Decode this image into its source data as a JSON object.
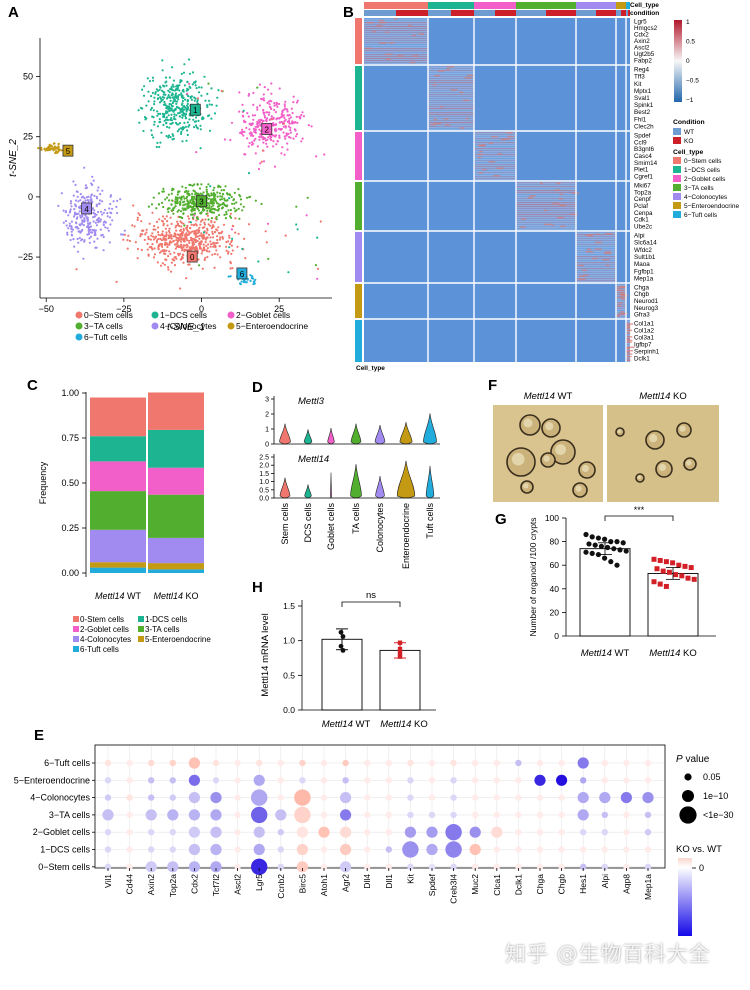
{
  "panels": {
    "A": "A",
    "B": "B",
    "C": "C",
    "D": "D",
    "E": "E",
    "F": "F",
    "G": "G",
    "H": "H"
  },
  "clusters": [
    {
      "label": "0−Stem cells",
      "tag": "0",
      "color": "#F0776D"
    },
    {
      "label": "1−DCS cells",
      "tag": "1",
      "color": "#1DB591"
    },
    {
      "label": "2−Goblet cells",
      "tag": "2",
      "color": "#F25FC8"
    },
    {
      "label": "3−TA cells",
      "tag": "3",
      "color": "#52AE2E"
    },
    {
      "label": "4−Colonocytes",
      "tag": "4",
      "color": "#A28BF0"
    },
    {
      "label": "5−Enteroendocrine",
      "tag": "5",
      "color": "#C49A14"
    },
    {
      "label": "6−Tuft cells",
      "tag": "6",
      "color": "#22ACDB"
    }
  ],
  "tsne": {
    "xlabel": "t-SNE_1",
    "ylabel": "t-SNE_2",
    "xticks": [
      -50,
      -25,
      0,
      25
    ],
    "yticks": [
      50,
      25,
      0,
      -25
    ],
    "xlim": [
      -52,
      42
    ],
    "ylim": [
      -42,
      66
    ]
  },
  "heatmap": {
    "annot_celltype": "Cell_type",
    "annot_condition": "condition",
    "row_annot_label": "Cell_type",
    "color_ticks": [
      "1",
      "0.5",
      "0",
      "−0.5",
      "−1"
    ],
    "legend_condition_title": "Condition",
    "conditions": [
      {
        "label": "WT",
        "color": "#6E9BD0"
      },
      {
        "label": "KO",
        "color": "#CC1F2A"
      }
    ],
    "legend_celltype_title": "Cell_type",
    "gene_groups": [
      [
        "Lgr5",
        "Hmgcs2",
        "Cdx2",
        "Axin2",
        "Ascl2",
        "Ugt2b5",
        "Fabp2"
      ],
      [
        "Reg4",
        "Tff3",
        "Kit",
        "Mptx1",
        "Sval1",
        "Spink1",
        "Best2",
        "Fhl1",
        "Clec2h"
      ],
      [
        "Spdef",
        "Ccl9",
        "B3gnt6",
        "Casc4",
        "Smim14",
        "Plet1",
        "Cgref1"
      ],
      [
        "Mki67",
        "Top2a",
        "Cenpf",
        "Pclaf",
        "Cenpa",
        "Cdk1",
        "Ube2c"
      ],
      [
        "Alpi",
        "Slc6a14",
        "Wfdc2",
        "Sult1b1",
        "Maoa",
        "Fgfbp1",
        "Mep1a"
      ],
      [
        "Chga",
        "Chgb",
        "Neurod1",
        "Neurog3",
        "Gfra3"
      ],
      [
        "Col1a1",
        "Col1a2",
        "Col3a1",
        "Igfbp7",
        "Serpinh1",
        "Dclk1"
      ]
    ]
  },
  "chart_data": [
    {
      "type": "bar",
      "panel": "C",
      "stacked": true,
      "categories": [
        "Mettl14 WT",
        "Mettl14 KO"
      ],
      "ylabel": "Frequency",
      "yticks": [
        "1.00",
        "0.75",
        "0.50",
        "0.25",
        "0.00"
      ],
      "ylim": [
        0,
        1
      ],
      "series": [
        {
          "name": "0-Stem cells",
          "values": [
            0.215,
            0.208
          ]
        },
        {
          "name": "1-DCS cells",
          "values": [
            0.14,
            0.21
          ]
        },
        {
          "name": "2-Goblet cells",
          "values": [
            0.165,
            0.15
          ]
        },
        {
          "name": "3-TA cells",
          "values": [
            0.215,
            0.24
          ]
        },
        {
          "name": "4-Colonocytes",
          "values": [
            0.18,
            0.14
          ]
        },
        {
          "name": "5-Enteroendocrine",
          "values": [
            0.03,
            0.035
          ]
        },
        {
          "name": "6-Tuft cells",
          "values": [
            0.03,
            0.02
          ]
        }
      ],
      "legend": [
        "0-Stem cells",
        "1-DCS cells",
        "2-Goblet cells",
        "3-TA cells",
        "4-Colonocytes",
        "5-Enteroendocrine",
        "6-Tuft cells"
      ]
    },
    {
      "type": "violin",
      "panel": "D",
      "genes": [
        {
          "name": "Mettl3",
          "yticks": [
            "3",
            "2",
            "1",
            "0"
          ],
          "ymax": 3.3
        },
        {
          "name": "Mettl14",
          "yticks": [
            "2.5",
            "2.0",
            "1.5",
            "1.0",
            "0.5",
            "0.0"
          ],
          "ymax": 2.6
        }
      ],
      "categories": [
        "Stem cells",
        "DCS cells",
        "Goblet cells",
        "TA cells",
        "Colonocytes",
        "Enteroendocrine",
        "Tuft cells"
      ],
      "widths": [
        [
          0.5,
          0.35,
          0.3,
          0.45,
          0.45,
          0.55,
          0.6
        ],
        [
          0.45,
          0.3,
          0.05,
          0.5,
          0.4,
          0.8,
          0.35
        ]
      ],
      "heights": [
        [
          1.4,
          1.0,
          1.1,
          1.4,
          1.3,
          1.5,
          2.1
        ],
        [
          1.2,
          0.8,
          1.5,
          2.0,
          1.3,
          2.2,
          1.9
        ]
      ]
    },
    {
      "type": "bar",
      "panel": "G",
      "categories": [
        "Mettl14 WT",
        "Mettl14 KO"
      ],
      "values": [
        74,
        53
      ],
      "ylabel": "Number of organoid /100 crypts",
      "yticks": [
        "100",
        "80",
        "60",
        "40",
        "20",
        "0"
      ],
      "ylim": [
        0,
        100
      ],
      "significance": "***",
      "points": [
        [
          86,
          84,
          83,
          82,
          80,
          80,
          79,
          78,
          77,
          76,
          75,
          74,
          73,
          72,
          71,
          70,
          69,
          66,
          63,
          60
        ],
        [
          65,
          64,
          63,
          62,
          60,
          59,
          58,
          57,
          55,
          54,
          52,
          51,
          49,
          48,
          46,
          44,
          42
        ]
      ]
    },
    {
      "type": "bar",
      "panel": "H",
      "categories": [
        "Mettl14 WT",
        "Mettl14 KO"
      ],
      "values": [
        1.02,
        0.86
      ],
      "errors": [
        0.15,
        0.11
      ],
      "ylabel": "Mettl14 mRNA level",
      "yticks": [
        "1.5",
        "1.0",
        "0.5",
        "0.0"
      ],
      "ylim": [
        0,
        1.5
      ],
      "significance": "ns",
      "points": [
        [
          1.12,
          1.06,
          0.92,
          0.86
        ],
        [
          0.97,
          0.88,
          0.83,
          0.77
        ]
      ]
    },
    {
      "type": "dot",
      "panel": "E",
      "rows": [
        "6−Tuft cells",
        "5−Enteroendocrine",
        "4−Colonocytes",
        "3−TA cells",
        "2−Goblet cells",
        "1−DCS cells",
        "0−Stem cells"
      ],
      "genes": [
        "Vil1",
        "Cd44",
        "Axin2",
        "Top2a",
        "Cdx2",
        "Tcf7l2",
        "Ascl2",
        "Lgr5",
        "Ccnb2",
        "Birc5",
        "Atoh1",
        "Agr2",
        "Dll4",
        "Dll1",
        "Kit",
        "Spdef",
        "Creb3l4",
        "Muc2",
        "Clca1",
        "Dclk1",
        "Chga",
        "Chgb",
        "Hes1",
        "Alpi",
        "Aqp8",
        "Mep1a"
      ],
      "size_legend_title": "P value",
      "size_legend": [
        "0.05",
        "1e−10",
        "<1e−30"
      ],
      "color_legend_title": "KO vs. WT",
      "color_legend_tick": "0",
      "values": [
        [
          [
            0.1,
            1
          ],
          [
            0.05,
            1
          ],
          [
            0.15,
            1
          ],
          [
            0.2,
            1
          ],
          [
            0.3,
            2
          ],
          [
            0.1,
            1
          ],
          [
            0.05,
            1
          ],
          [
            0.1,
            1
          ],
          [
            0.05,
            1
          ],
          [
            0.2,
            1
          ],
          [
            0.05,
            1
          ],
          [
            0.25,
            1
          ],
          [
            0.05,
            1
          ],
          [
            0.05,
            1
          ],
          [
            0.1,
            1
          ],
          [
            0.05,
            1
          ],
          [
            0.1,
            1
          ],
          [
            0.05,
            1
          ],
          [
            0.05,
            1
          ],
          [
            -0.2,
            1
          ],
          [
            0.05,
            1
          ],
          [
            0.05,
            1
          ],
          [
            -0.5,
            2
          ],
          [
            0.05,
            1
          ],
          [
            0.05,
            1
          ],
          [
            0.05,
            1
          ]
        ],
        [
          [
            -0.1,
            1
          ],
          [
            0.05,
            1
          ],
          [
            -0.2,
            1
          ],
          [
            -0.2,
            1
          ],
          [
            -0.55,
            2
          ],
          [
            -0.1,
            1
          ],
          [
            0.05,
            1
          ],
          [
            -0.3,
            2
          ],
          [
            0.05,
            1
          ],
          [
            -0.1,
            1
          ],
          [
            0.05,
            1
          ],
          [
            -0.2,
            1
          ],
          [
            0.05,
            1
          ],
          [
            0.05,
            1
          ],
          [
            -0.1,
            1
          ],
          [
            0.05,
            1
          ],
          [
            -0.1,
            1
          ],
          [
            0.05,
            1
          ],
          [
            0.05,
            1
          ],
          [
            0.05,
            1
          ],
          [
            -0.85,
            2
          ],
          [
            -0.95,
            2
          ],
          [
            -0.3,
            1
          ],
          [
            0.05,
            1
          ],
          [
            0.05,
            1
          ],
          [
            0.05,
            1
          ]
        ],
        [
          [
            -0.15,
            1
          ],
          [
            0.1,
            1
          ],
          [
            -0.2,
            1
          ],
          [
            -0.15,
            1
          ],
          [
            -0.2,
            2
          ],
          [
            -0.4,
            2
          ],
          [
            0.05,
            1
          ],
          [
            -0.3,
            3
          ],
          [
            0.05,
            1
          ],
          [
            0.35,
            3
          ],
          [
            0.05,
            1
          ],
          [
            -0.2,
            2
          ],
          [
            0.05,
            1
          ],
          [
            0.05,
            1
          ],
          [
            -0.1,
            1
          ],
          [
            0.05,
            1
          ],
          [
            -0.1,
            1
          ],
          [
            0.05,
            1
          ],
          [
            0.05,
            1
          ],
          [
            0.05,
            1
          ],
          [
            0.05,
            1
          ],
          [
            0.05,
            1
          ],
          [
            -0.3,
            2
          ],
          [
            -0.3,
            2
          ],
          [
            -0.5,
            2
          ],
          [
            -0.4,
            2
          ]
        ],
        [
          [
            -0.2,
            2
          ],
          [
            0.05,
            1
          ],
          [
            -0.2,
            2
          ],
          [
            -0.25,
            2
          ],
          [
            -0.25,
            2
          ],
          [
            -0.3,
            2
          ],
          [
            0.05,
            1
          ],
          [
            -0.6,
            3
          ],
          [
            -0.2,
            2
          ],
          [
            0.2,
            3
          ],
          [
            0.05,
            1
          ],
          [
            -0.5,
            2
          ],
          [
            0.05,
            1
          ],
          [
            0.05,
            1
          ],
          [
            -0.1,
            1
          ],
          [
            -0.1,
            1
          ],
          [
            -0.1,
            1
          ],
          [
            0.05,
            1
          ],
          [
            0.05,
            1
          ],
          [
            0.05,
            1
          ],
          [
            0.05,
            1
          ],
          [
            0.05,
            1
          ],
          [
            -0.3,
            2
          ],
          [
            -0.2,
            1
          ],
          [
            0.05,
            1
          ],
          [
            -0.2,
            1
          ]
        ],
        [
          [
            -0.1,
            1
          ],
          [
            0.05,
            1
          ],
          [
            -0.1,
            1
          ],
          [
            -0.1,
            1
          ],
          [
            -0.15,
            2
          ],
          [
            -0.2,
            2
          ],
          [
            0.05,
            1
          ],
          [
            -0.2,
            2
          ],
          [
            -0.15,
            1
          ],
          [
            0.1,
            2
          ],
          [
            0.3,
            2
          ],
          [
            0.15,
            2
          ],
          [
            0.05,
            1
          ],
          [
            0.05,
            1
          ],
          [
            -0.35,
            2
          ],
          [
            -0.35,
            2
          ],
          [
            -0.5,
            3
          ],
          [
            -0.4,
            2
          ],
          [
            0.15,
            2
          ],
          [
            0.05,
            1
          ],
          [
            0.05,
            1
          ],
          [
            0.05,
            1
          ],
          [
            -0.1,
            1
          ],
          [
            -0.1,
            1
          ],
          [
            0.05,
            1
          ],
          [
            -0.15,
            1
          ]
        ],
        [
          [
            -0.1,
            1
          ],
          [
            0.05,
            1
          ],
          [
            -0.1,
            1
          ],
          [
            -0.1,
            1
          ],
          [
            -0.2,
            2
          ],
          [
            -0.25,
            2
          ],
          [
            0.05,
            1
          ],
          [
            -0.3,
            2
          ],
          [
            -0.1,
            1
          ],
          [
            0.2,
            2
          ],
          [
            0.05,
            1
          ],
          [
            0.25,
            2
          ],
          [
            0.05,
            1
          ],
          [
            -0.2,
            1
          ],
          [
            -0.4,
            3
          ],
          [
            -0.3,
            2
          ],
          [
            -0.45,
            3
          ],
          [
            0.3,
            2
          ],
          [
            0.05,
            1
          ],
          [
            0.05,
            1
          ],
          [
            0.05,
            1
          ],
          [
            0.05,
            1
          ],
          [
            0.05,
            1
          ],
          [
            0.05,
            1
          ],
          [
            0.05,
            1
          ],
          [
            0.05,
            1
          ]
        ],
        [
          [
            -0.1,
            1
          ],
          [
            0.05,
            1
          ],
          [
            -0.15,
            2
          ],
          [
            -0.2,
            2
          ],
          [
            -0.25,
            2
          ],
          [
            -0.3,
            2
          ],
          [
            0.05,
            1
          ],
          [
            -0.85,
            3
          ],
          [
            -0.1,
            1
          ],
          [
            0.25,
            2
          ],
          [
            0.05,
            1
          ],
          [
            -0.15,
            2
          ],
          [
            0.05,
            1
          ],
          [
            0.05,
            1
          ],
          [
            -0.1,
            1
          ],
          [
            -0.05,
            1
          ],
          [
            -0.1,
            1
          ],
          [
            0.05,
            1
          ],
          [
            0.05,
            1
          ],
          [
            0.05,
            1
          ],
          [
            0.05,
            1
          ],
          [
            0.05,
            1
          ],
          [
            -0.2,
            1
          ],
          [
            -0.1,
            1
          ],
          [
            0.05,
            1
          ],
          [
            -0.1,
            1
          ]
        ]
      ]
    }
  ],
  "organoid": {
    "wt_label_gene": "Mettl14",
    "wt_label_cond": " WT",
    "ko_label_gene": "Mettl14",
    "ko_label_cond": " KO"
  },
  "watermark": "知乎 @生物百科大全"
}
